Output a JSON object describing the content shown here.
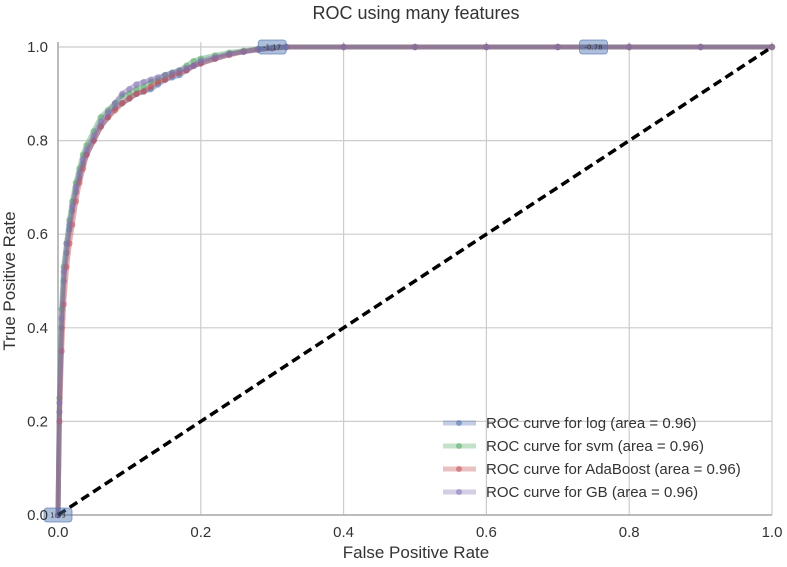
{
  "chart_data": {
    "type": "line",
    "title": "ROC using many features",
    "xlabel": "False Positive Rate",
    "ylabel": "True Positive Rate",
    "xlim": [
      0.0,
      1.0
    ],
    "ylim": [
      0.0,
      1.0
    ],
    "xticks": [
      "0.0",
      "0.2",
      "0.4",
      "0.6",
      "0.8",
      "1.0"
    ],
    "yticks": [
      "0.0",
      "0.2",
      "0.4",
      "0.6",
      "0.8",
      "1.0"
    ],
    "grid": true,
    "legend_position": "bottom-right",
    "series": [
      {
        "name": "ROC curve for log (area = 0.96)",
        "color": "#4c72b0",
        "x": [
          0,
          0.002,
          0.005,
          0.008,
          0.012,
          0.016,
          0.02,
          0.025,
          0.03,
          0.035,
          0.04,
          0.05,
          0.06,
          0.07,
          0.08,
          0.09,
          0.1,
          0.11,
          0.12,
          0.13,
          0.14,
          0.15,
          0.16,
          0.17,
          0.18,
          0.19,
          0.2,
          0.22,
          0.24,
          0.26,
          0.28,
          0.3,
          0.32,
          0.4,
          0.5,
          0.6,
          0.7,
          0.8,
          0.9,
          1.0
        ],
        "y": [
          0,
          0.22,
          0.4,
          0.5,
          0.56,
          0.61,
          0.65,
          0.69,
          0.72,
          0.75,
          0.77,
          0.8,
          0.83,
          0.85,
          0.87,
          0.88,
          0.89,
          0.9,
          0.905,
          0.91,
          0.92,
          0.93,
          0.935,
          0.94,
          0.95,
          0.96,
          0.965,
          0.975,
          0.985,
          0.99,
          0.995,
          0.998,
          1.0,
          1.0,
          1.0,
          1.0,
          1.0,
          1.0,
          1.0,
          1.0
        ]
      },
      {
        "name": "ROC curve for svm (area = 0.96)",
        "color": "#55a868",
        "x": [
          0,
          0.002,
          0.005,
          0.008,
          0.012,
          0.016,
          0.02,
          0.025,
          0.03,
          0.035,
          0.04,
          0.05,
          0.06,
          0.07,
          0.08,
          0.09,
          0.1,
          0.11,
          0.12,
          0.13,
          0.14,
          0.15,
          0.16,
          0.17,
          0.18,
          0.19,
          0.2,
          0.22,
          0.24,
          0.26,
          0.28,
          0.3,
          0.32,
          0.4,
          0.5,
          0.6,
          0.7,
          0.8,
          0.9,
          1.0
        ],
        "y": [
          0,
          0.25,
          0.44,
          0.53,
          0.58,
          0.63,
          0.67,
          0.71,
          0.74,
          0.77,
          0.79,
          0.82,
          0.85,
          0.865,
          0.88,
          0.895,
          0.9,
          0.91,
          0.915,
          0.925,
          0.93,
          0.94,
          0.945,
          0.95,
          0.96,
          0.97,
          0.975,
          0.982,
          0.988,
          0.992,
          0.996,
          0.998,
          1.0,
          1.0,
          1.0,
          1.0,
          1.0,
          1.0,
          1.0,
          1.0
        ]
      },
      {
        "name": "ROC curve for AdaBoost (area = 0.96)",
        "color": "#c44e52",
        "x": [
          0,
          0.002,
          0.005,
          0.008,
          0.012,
          0.016,
          0.02,
          0.025,
          0.03,
          0.035,
          0.04,
          0.05,
          0.06,
          0.07,
          0.08,
          0.09,
          0.1,
          0.11,
          0.12,
          0.13,
          0.14,
          0.15,
          0.16,
          0.17,
          0.18,
          0.19,
          0.2,
          0.22,
          0.24,
          0.26,
          0.28,
          0.3,
          0.32,
          0.4,
          0.5,
          0.6,
          0.7,
          0.8,
          0.9,
          1.0
        ],
        "y": [
          0,
          0.2,
          0.35,
          0.45,
          0.53,
          0.58,
          0.62,
          0.67,
          0.71,
          0.74,
          0.77,
          0.8,
          0.83,
          0.85,
          0.865,
          0.88,
          0.89,
          0.9,
          0.905,
          0.915,
          0.925,
          0.93,
          0.94,
          0.945,
          0.95,
          0.96,
          0.965,
          0.975,
          0.983,
          0.99,
          0.994,
          0.997,
          1.0,
          1.0,
          1.0,
          1.0,
          1.0,
          1.0,
          1.0,
          1.0
        ]
      },
      {
        "name": "ROC curve for GB (area = 0.96)",
        "color": "#8172b2",
        "x": [
          0,
          0.002,
          0.005,
          0.008,
          0.012,
          0.016,
          0.02,
          0.025,
          0.03,
          0.035,
          0.04,
          0.05,
          0.06,
          0.07,
          0.08,
          0.09,
          0.1,
          0.11,
          0.12,
          0.13,
          0.14,
          0.15,
          0.16,
          0.17,
          0.18,
          0.19,
          0.2,
          0.22,
          0.24,
          0.26,
          0.28,
          0.3,
          0.32,
          0.4,
          0.5,
          0.6,
          0.7,
          0.8,
          0.9,
          1.0
        ],
        "y": [
          0,
          0.24,
          0.42,
          0.52,
          0.58,
          0.62,
          0.66,
          0.7,
          0.73,
          0.76,
          0.78,
          0.81,
          0.84,
          0.86,
          0.88,
          0.9,
          0.91,
          0.92,
          0.925,
          0.93,
          0.935,
          0.94,
          0.945,
          0.95,
          0.955,
          0.96,
          0.97,
          0.978,
          0.985,
          0.99,
          0.995,
          0.998,
          1.0,
          1.0,
          1.0,
          1.0,
          1.0,
          1.0,
          1.0,
          1.0
        ]
      }
    ],
    "diagonal": {
      "x": [
        0,
        1
      ],
      "y": [
        0,
        1
      ],
      "color": "#000000",
      "style": "dashed"
    },
    "threshold_annotations": [
      {
        "x": 0.0,
        "y": 0.0,
        "text": "1.53"
      },
      {
        "x": 0.3,
        "y": 1.0,
        "text": "-1.17"
      },
      {
        "x": 0.75,
        "y": 1.0,
        "text": "-0.78"
      }
    ]
  }
}
